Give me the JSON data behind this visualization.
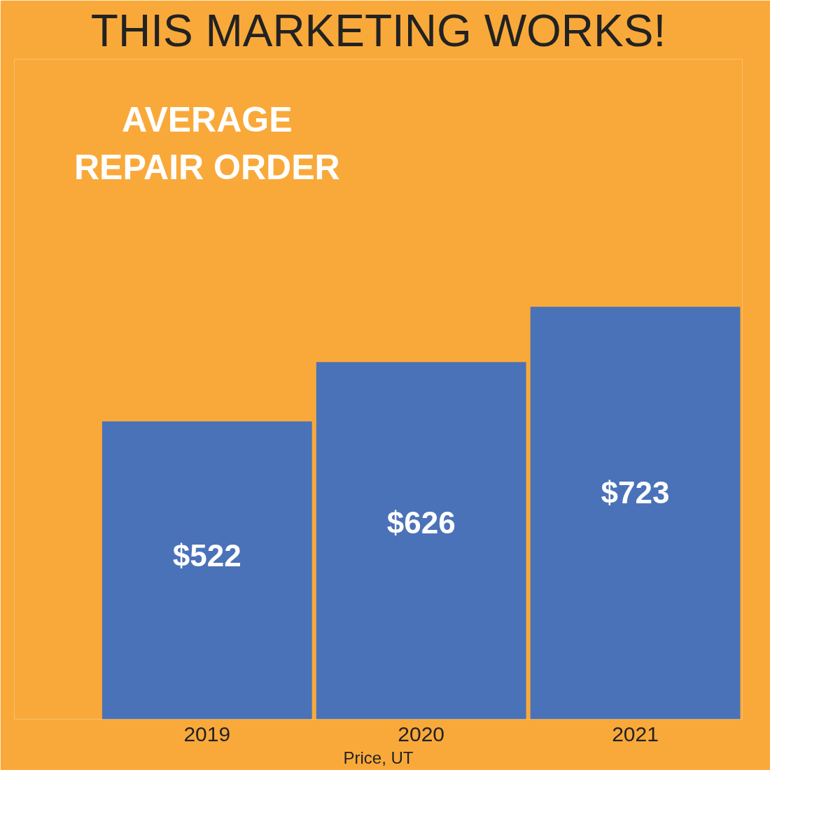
{
  "chart_data": {
    "type": "bar",
    "title": "THIS MARKETING WORKS!",
    "subtitle": "AVERAGE\nREPAIR ORDER",
    "categories": [
      "2019",
      "2020",
      "2021"
    ],
    "values": [
      522,
      626,
      723
    ],
    "value_labels": [
      "$522",
      "$626",
      "$723"
    ],
    "color": "#4a72b8",
    "annotations": [
      "Price, UT"
    ]
  }
}
